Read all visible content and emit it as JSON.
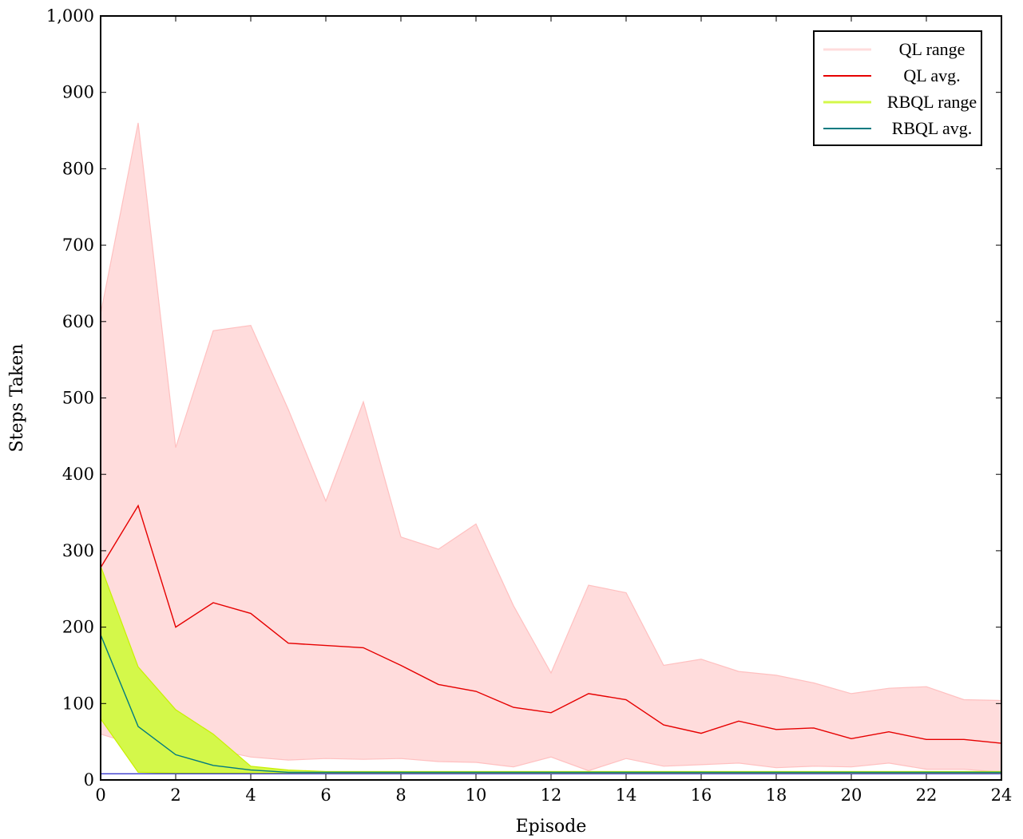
{
  "chart_data": {
    "type": "line",
    "title": "",
    "xlabel": "Episode",
    "ylabel": "Steps Taken",
    "xlim": [
      0,
      24
    ],
    "ylim": [
      0,
      1000
    ],
    "xticks": [
      0,
      2,
      4,
      6,
      8,
      10,
      12,
      14,
      16,
      18,
      20,
      22,
      24
    ],
    "yticks": [
      0,
      100,
      200,
      300,
      400,
      500,
      600,
      700,
      800,
      900,
      1000
    ],
    "ytick_labels": [
      "0",
      "100",
      "200",
      "300",
      "400",
      "500",
      "600",
      "700",
      "800",
      "900",
      "1,000"
    ],
    "grid": false,
    "legend_position": "top-right",
    "x": [
      0,
      1,
      2,
      3,
      4,
      5,
      6,
      7,
      8,
      9,
      10,
      11,
      12,
      13,
      14,
      15,
      16,
      17,
      18,
      19,
      20,
      21,
      22,
      23,
      24
    ],
    "series": [
      {
        "name": "QL range",
        "kind": "range",
        "color": "#ffc0c0",
        "fill": "#ffdcdc",
        "upper": [
          610,
          860,
          435,
          588,
          595,
          485,
          365,
          495,
          318,
          302,
          335,
          228,
          140,
          255,
          245,
          150,
          158,
          142,
          137,
          127,
          113,
          120,
          122,
          105,
          104
        ],
        "lower": [
          60,
          45,
          30,
          40,
          30,
          26,
          28,
          27,
          28,
          24,
          23,
          17,
          30,
          12,
          28,
          18,
          20,
          22,
          16,
          18,
          17,
          22,
          14,
          14,
          10
        ]
      },
      {
        "name": "QL avg.",
        "kind": "line",
        "color": "#e60000",
        "values": [
          278,
          359,
          200,
          232,
          218,
          179,
          176,
          173,
          150,
          125,
          116,
          95,
          88,
          113,
          105,
          72,
          61,
          77,
          66,
          68,
          54,
          63,
          53,
          53,
          48
        ]
      },
      {
        "name": "RBQL range",
        "kind": "range",
        "color": "#c8f000",
        "fill": "#d4f84a",
        "upper": [
          280,
          148,
          92,
          60,
          18,
          13,
          11,
          11,
          11,
          11,
          11,
          11,
          11,
          11,
          11,
          11,
          11,
          11,
          11,
          11,
          11,
          11,
          11,
          11,
          11
        ],
        "lower": [
          80,
          10,
          9,
          9,
          9,
          9,
          9,
          9,
          9,
          9,
          9,
          9,
          9,
          9,
          9,
          9,
          9,
          9,
          9,
          9,
          9,
          9,
          9,
          9,
          9
        ]
      },
      {
        "name": "RBQL avg.",
        "kind": "line",
        "color": "#007a80",
        "values": [
          190,
          70,
          33,
          19,
          13,
          10,
          10,
          10,
          10,
          10,
          10,
          10,
          10,
          10,
          10,
          10,
          10,
          10,
          10,
          10,
          10,
          10,
          10,
          10,
          10
        ]
      }
    ],
    "reference_line": {
      "y": 8,
      "color": "#3a3acc"
    }
  }
}
